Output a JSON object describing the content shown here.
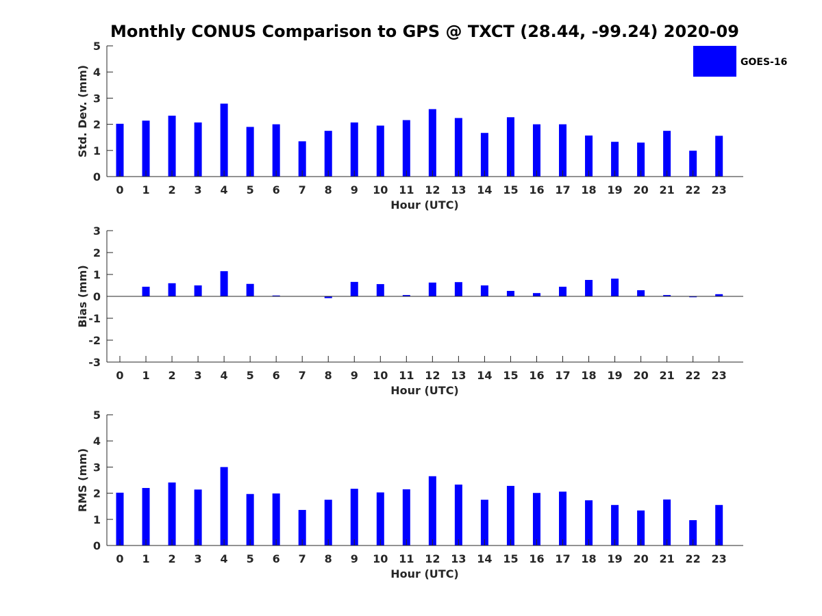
{
  "figure": {
    "title": "Monthly CONUS Comparison to GPS @ TXCT (28.44, -99.24) 2020-09"
  },
  "legend": {
    "label": "GOES-16",
    "color": "#0000FF",
    "placement": "top-right"
  },
  "chart_data": [
    {
      "type": "bar",
      "xlabel": "Hour (UTC)",
      "ylabel": "Std. Dev. (mm)",
      "ylim": [
        0,
        5
      ],
      "yticks": [
        0,
        1,
        2,
        3,
        4,
        5
      ],
      "categories": [
        "0",
        "1",
        "2",
        "3",
        "4",
        "5",
        "6",
        "7",
        "8",
        "9",
        "10",
        "11",
        "12",
        "13",
        "14",
        "15",
        "16",
        "17",
        "18",
        "19",
        "20",
        "21",
        "22",
        "23"
      ],
      "series": [
        {
          "name": "GOES-16",
          "color": "#0000FF",
          "values": [
            2.02,
            2.14,
            2.33,
            2.07,
            2.79,
            1.9,
            2.0,
            1.35,
            1.75,
            2.07,
            1.95,
            2.16,
            2.58,
            2.24,
            1.67,
            2.27,
            2.0,
            2.0,
            1.57,
            1.33,
            1.3,
            1.75,
            0.99,
            1.56
          ]
        }
      ],
      "grid": false
    },
    {
      "type": "bar",
      "xlabel": "Hour (UTC)",
      "ylabel": "Bias (mm)",
      "ylim": [
        -3,
        3
      ],
      "yticks": [
        -3,
        -2,
        -1,
        0,
        1,
        2,
        3
      ],
      "categories": [
        "0",
        "1",
        "2",
        "3",
        "4",
        "5",
        "6",
        "7",
        "8",
        "9",
        "10",
        "11",
        "12",
        "13",
        "14",
        "15",
        "16",
        "17",
        "18",
        "19",
        "20",
        "21",
        "22",
        "23"
      ],
      "series": [
        {
          "name": "GOES-16",
          "color": "#0000FF",
          "values": [
            0.0,
            0.44,
            0.6,
            0.5,
            1.15,
            0.57,
            0.04,
            -0.01,
            -0.08,
            0.66,
            0.56,
            0.06,
            0.63,
            0.65,
            0.5,
            0.25,
            0.15,
            0.44,
            0.75,
            0.81,
            0.28,
            0.06,
            -0.04,
            0.1
          ]
        }
      ],
      "grid": false
    },
    {
      "type": "bar",
      "xlabel": "Hour (UTC)",
      "ylabel": "RMS (mm)",
      "ylim": [
        0,
        5
      ],
      "yticks": [
        0,
        1,
        2,
        3,
        4,
        5
      ],
      "categories": [
        "0",
        "1",
        "2",
        "3",
        "4",
        "5",
        "6",
        "7",
        "8",
        "9",
        "10",
        "11",
        "12",
        "13",
        "14",
        "15",
        "16",
        "17",
        "18",
        "19",
        "20",
        "21",
        "22",
        "23"
      ],
      "series": [
        {
          "name": "GOES-16",
          "color": "#0000FF",
          "values": [
            2.02,
            2.2,
            2.41,
            2.14,
            3.0,
            1.97,
            1.99,
            1.36,
            1.75,
            2.17,
            2.03,
            2.15,
            2.65,
            2.33,
            1.75,
            2.28,
            2.01,
            2.06,
            1.73,
            1.55,
            1.34,
            1.76,
            0.97,
            1.55
          ]
        }
      ],
      "grid": false
    }
  ]
}
